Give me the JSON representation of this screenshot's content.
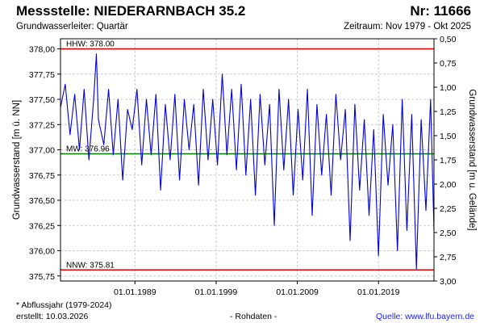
{
  "header": {
    "station": "Messstelle: NIEDERARNBACH 35.2",
    "number": "Nr: 11666",
    "aquifer": "Grundwasserleiter: Quartär",
    "period": "Zeitraum: Nov 1979 - Okt 2025"
  },
  "footer": {
    "hydro_year": "* Abflussjahr (1979-2024)",
    "created": "erstellt:  10.03.2026",
    "raw": "- Rohdaten -",
    "source": "Quelle: www.lfu.bayern.de"
  },
  "colors": {
    "series": "#0000dd",
    "hhw": "#dd0000",
    "nnw": "#dd0000",
    "mw": "#007700",
    "grid": "#cccccc"
  },
  "chart_data": {
    "type": "line",
    "ylabel": "Grundwasserstand [m ü. NN]",
    "ylabel_right": "Grundwasserstand [m u. Gelände]",
    "ylim": [
      375.7,
      378.1
    ],
    "yticks": [
      "378,00",
      "377,75",
      "377,50",
      "377,25",
      "377,00",
      "376,75",
      "376,50",
      "376,25",
      "376,00",
      "375,75"
    ],
    "yticks_right": [
      "0,50",
      "0,75",
      "1,00",
      "1,25",
      "1,50",
      "1,75",
      "2,00",
      "2,25",
      "2,50",
      "2,75",
      "3,00"
    ],
    "xlim": [
      "1979-11-01",
      "2025-10-31"
    ],
    "xticks": [
      "01.01.1989",
      "01.01.1999",
      "01.01.2009",
      "01.01.2019"
    ],
    "grid": true,
    "reference_lines": [
      {
        "label": "HHW: 378.00",
        "value": 378.0
      },
      {
        "label": "MW: 376.96",
        "value": 376.96
      },
      {
        "label": "NNW: 375.81",
        "value": 375.81
      }
    ],
    "series": [
      {
        "x": [
          "1979-11-01",
          "1980-06-01",
          "1981-01-01",
          "1981-08-01",
          "1982-03-01",
          "1982-10-01",
          "1983-05-01",
          "1983-12-01",
          "1984-04-01",
          "1984-07-01",
          "1985-03-01",
          "1985-10-01",
          "1986-05-01",
          "1986-12-01",
          "1987-07-01",
          "1988-02-01",
          "1988-09-01",
          "1989-04-01",
          "1989-11-01",
          "1990-06-01",
          "1991-01-01",
          "1991-08-01",
          "1992-03-01",
          "1992-10-01",
          "1993-05-01",
          "1993-12-01",
          "1994-07-01",
          "1995-02-01",
          "1995-09-01",
          "1996-04-01",
          "1996-11-01",
          "1997-06-01",
          "1998-01-01",
          "1998-08-01",
          "1999-03-01",
          "1999-10-01",
          "2000-05-01",
          "2000-12-01",
          "2001-07-01",
          "2002-02-01",
          "2002-09-01",
          "2003-04-01",
          "2003-11-01",
          "2004-06-01",
          "2005-01-01",
          "2005-08-01",
          "2006-03-01",
          "2006-10-01",
          "2007-05-01",
          "2007-12-01",
          "2008-07-01",
          "2009-02-01",
          "2009-09-01",
          "2010-04-01",
          "2010-11-01",
          "2011-06-01",
          "2012-01-01",
          "2012-08-01",
          "2013-03-01",
          "2013-10-01",
          "2014-05-01",
          "2014-12-01",
          "2015-07-01",
          "2016-02-01",
          "2016-09-01",
          "2017-04-01",
          "2017-11-01",
          "2018-06-01",
          "2019-01-01",
          "2019-08-01",
          "2020-03-01",
          "2020-10-01",
          "2021-05-01",
          "2021-12-01",
          "2022-07-01",
          "2023-02-01",
          "2023-09-01",
          "2024-04-01",
          "2024-11-01",
          "2025-06-01",
          "2025-10-31"
        ],
        "values": [
          377.42,
          377.65,
          377.15,
          377.55,
          377.0,
          377.6,
          376.9,
          377.5,
          377.95,
          377.3,
          377.05,
          377.6,
          376.95,
          377.5,
          376.7,
          377.4,
          377.2,
          377.6,
          376.85,
          377.5,
          376.95,
          377.55,
          376.6,
          377.45,
          376.9,
          377.55,
          376.7,
          377.5,
          377.0,
          377.45,
          376.65,
          377.6,
          376.9,
          377.5,
          376.85,
          377.75,
          376.95,
          377.6,
          376.8,
          377.65,
          376.75,
          377.5,
          376.55,
          377.55,
          376.85,
          377.45,
          376.25,
          377.6,
          376.8,
          377.5,
          376.55,
          377.4,
          376.7,
          377.6,
          376.35,
          377.45,
          376.75,
          377.35,
          376.55,
          377.55,
          376.9,
          377.4,
          376.1,
          377.45,
          376.6,
          377.3,
          376.35,
          377.2,
          375.95,
          377.35,
          376.65,
          377.25,
          376.0,
          377.5,
          376.2,
          377.35,
          375.82,
          377.3,
          376.4,
          377.5,
          376.2
        ]
      }
    ]
  }
}
